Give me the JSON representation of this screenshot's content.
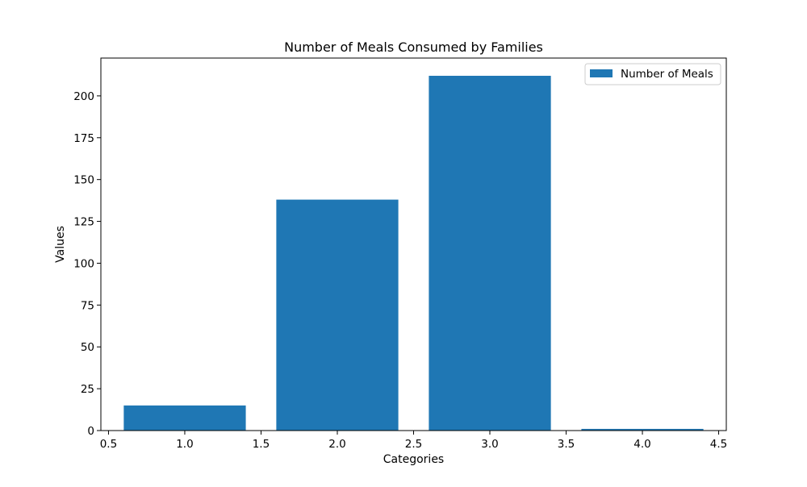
{
  "chart_data": {
    "type": "bar",
    "title": "Number of Meals Consumed by Families",
    "xlabel": "Categories",
    "ylabel": "Values",
    "x": [
      1.0,
      2.0,
      3.0,
      4.0
    ],
    "values": [
      15,
      138,
      212,
      1
    ],
    "series": [
      {
        "name": "Number of Meals",
        "values": [
          15,
          138,
          212,
          1
        ],
        "color": "#1f77b4"
      }
    ],
    "bar_width": 0.8,
    "xlim": [
      0.45,
      4.55
    ],
    "ylim": [
      0,
      222.6
    ],
    "xticks": [
      0.5,
      1.0,
      1.5,
      2.0,
      2.5,
      3.0,
      3.5,
      4.0,
      4.5
    ],
    "xtick_labels": [
      "0.5",
      "1.0",
      "1.5",
      "2.0",
      "2.5",
      "3.0",
      "3.5",
      "4.0",
      "4.5"
    ],
    "yticks": [
      0,
      25,
      50,
      75,
      100,
      125,
      150,
      175,
      200
    ],
    "ytick_labels": [
      "0",
      "25",
      "50",
      "75",
      "100",
      "125",
      "150",
      "175",
      "200"
    ],
    "grid": false,
    "legend": {
      "placement": "upper-right",
      "entries": [
        "Number of Meals"
      ]
    }
  }
}
